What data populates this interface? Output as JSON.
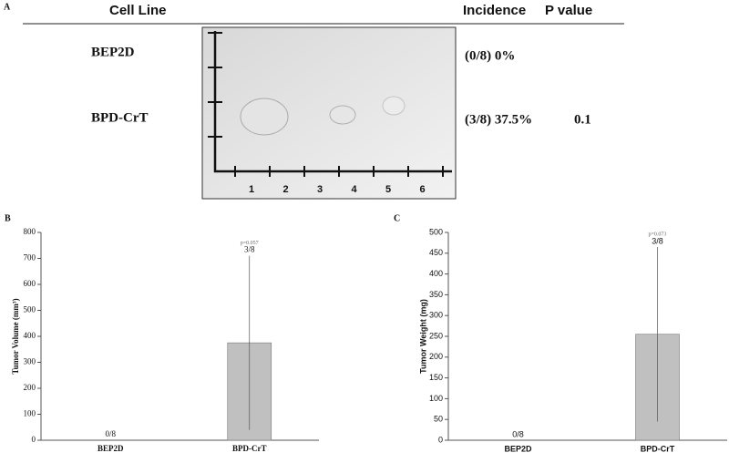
{
  "panel_a": {
    "label": "A",
    "headers": [
      "Cell Line",
      "Incidence",
      "P value"
    ],
    "rows": [
      [
        "BEP2D",
        "(0/8) 0%"
      ],
      [
        "BPD-CrT",
        "(3/8) 37.5%",
        "0.1"
      ]
    ],
    "ruler_labels": [
      "1",
      "2",
      "3",
      "4",
      "5",
      "6"
    ]
  },
  "chart_data": [
    {
      "type": "bar",
      "panel_label": "B",
      "y_label": "Tumor Volume (mm³)",
      "categories": [
        "BEP2D",
        "BPD-CrT"
      ],
      "values": [
        0,
        375
      ],
      "errors": [
        null,
        335
      ],
      "annotations": [
        "0/8",
        "3/8"
      ],
      "p_label": "p=0.057",
      "color": "#c0c0c0",
      "ylim": [
        0,
        800
      ],
      "yticks": [
        0,
        100,
        200,
        300,
        400,
        500,
        600,
        700,
        800
      ]
    },
    {
      "type": "bar",
      "panel_label": "C",
      "y_label": "Tumor Weight (mg)",
      "categories": [
        "BEP2D",
        "BPD-CrT"
      ],
      "values": [
        0,
        255
      ],
      "errors": [
        null,
        210
      ],
      "annotations": [
        "0/8",
        "3/8"
      ],
      "p_label": "p=0.073",
      "color": "#c0c0c0",
      "ylim": [
        0,
        500
      ],
      "yticks": [
        0,
        50,
        100,
        150,
        200,
        250,
        300,
        350,
        400,
        450,
        500
      ]
    }
  ]
}
